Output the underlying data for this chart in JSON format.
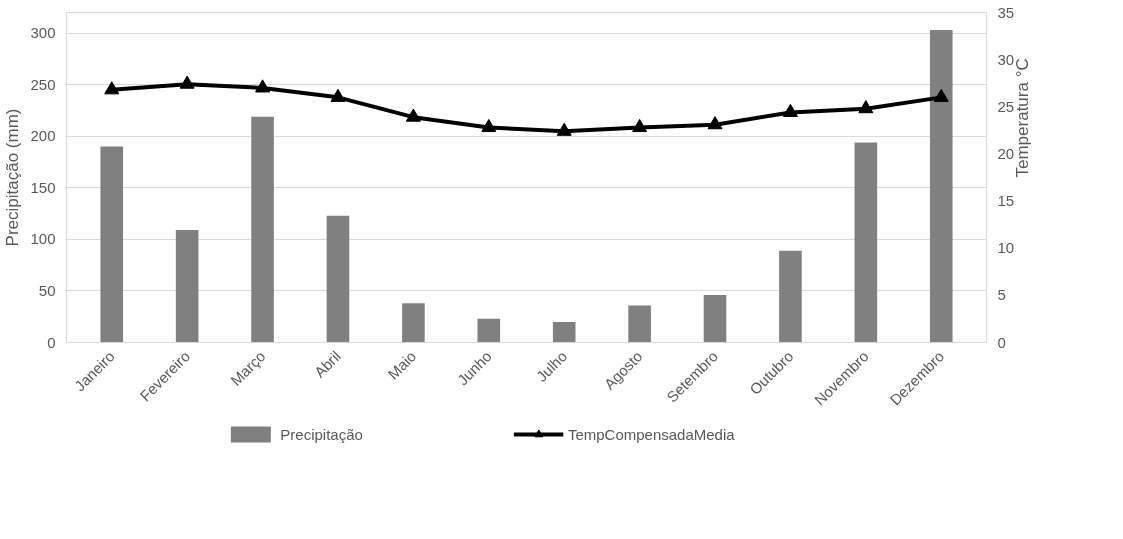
{
  "chart_data": {
    "type": "bar",
    "ylabel": "Precipitação (mm)",
    "y2label": "Temperatura °C",
    "categories": [
      "Janeiro",
      "Fevereiro",
      "Março",
      "Abril",
      "Maio",
      "Junho",
      "Julho",
      "Agosto",
      "Setembro",
      "Outubro",
      "Novembro",
      "Dezembro"
    ],
    "series": [
      {
        "name": "Precipitação",
        "color": "#808080",
        "values": [
          190,
          109,
          219,
          123,
          38,
          23,
          20,
          36,
          46,
          89,
          194,
          303
        ]
      },
      {
        "name": "TempCompensadaMedia",
        "type": "line",
        "axis": "y2",
        "color": "#000000",
        "marker": "triangle",
        "values": [
          26.8,
          27.4,
          27.0,
          26.0,
          23.9,
          22.8,
          22.4,
          22.8,
          23.1,
          24.4,
          24.8,
          26.0
        ]
      }
    ],
    "ylim": [
      0,
      320
    ],
    "yticks": [
      0,
      50,
      100,
      150,
      200,
      250,
      300
    ],
    "y2lim": [
      0,
      35
    ],
    "y2ticks": [
      0,
      5,
      10,
      15,
      20,
      25,
      30,
      35
    ],
    "grid": "y",
    "legend": "bottom"
  }
}
